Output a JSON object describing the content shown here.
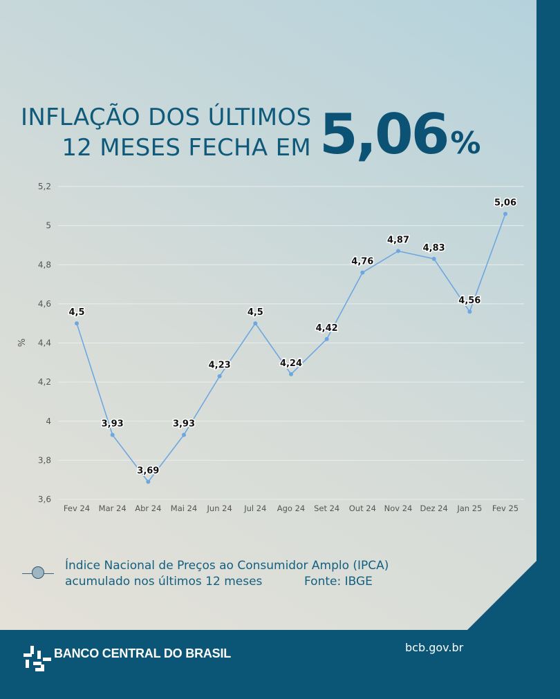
{
  "headline": {
    "line1": "INFLAÇÃO DOS ÚLTIMOS",
    "line2": "12 MESES  FECHA EM",
    "value": "5,06",
    "value_unit": "%"
  },
  "colors": {
    "brand": "#0b5676",
    "line": "#6ea7e0",
    "point": "#6ea7e0",
    "gridline": "#e9eeee"
  },
  "chart_data": {
    "type": "line",
    "categories": [
      "Fev 24",
      "Mar 24",
      "Abr 24",
      "Mai 24",
      "Jun 24",
      "Jul 24",
      "Ago 24",
      "Set 24",
      "Out 24",
      "Nov 24",
      "Dez 24",
      "Jan 25",
      "Fev 25"
    ],
    "series": [
      {
        "values": [
          4.5,
          3.93,
          3.69,
          3.93,
          4.23,
          4.5,
          4.24,
          4.42,
          4.76,
          4.87,
          4.83,
          4.56,
          5.06
        ],
        "labels": [
          "4,5",
          "3,93",
          "3,69",
          "3,93",
          "4,23",
          "4,5",
          "4,24",
          "4,42",
          "4,76",
          "4,87",
          "4,83",
          "4,56",
          "5,06"
        ]
      }
    ],
    "ylabel": "%",
    "xlabel": "",
    "ylim": [
      3.6,
      5.2
    ],
    "yticks": [
      3.6,
      3.8,
      4,
      4.2,
      4.4,
      4.6,
      4.8,
      5,
      5.2
    ],
    "ytick_labels": [
      "3,6",
      "3,8",
      "4",
      "4,2",
      "4,4",
      "4,6",
      "4,8",
      "5",
      "5,2"
    ],
    "grid": true,
    "legend_position": "bottom-left"
  },
  "legend": {
    "line1": "Índice Nacional de Preços ao Consumidor Amplo (IPCA)",
    "line2": "acumulado nos últimos 12 meses",
    "source": "Fonte: IBGE"
  },
  "footer": {
    "bank_name": "BANCO CENTRAL DO BRASIL",
    "website": "bcb.gov.br",
    "logo_icon": "bcb-logo-icon"
  }
}
